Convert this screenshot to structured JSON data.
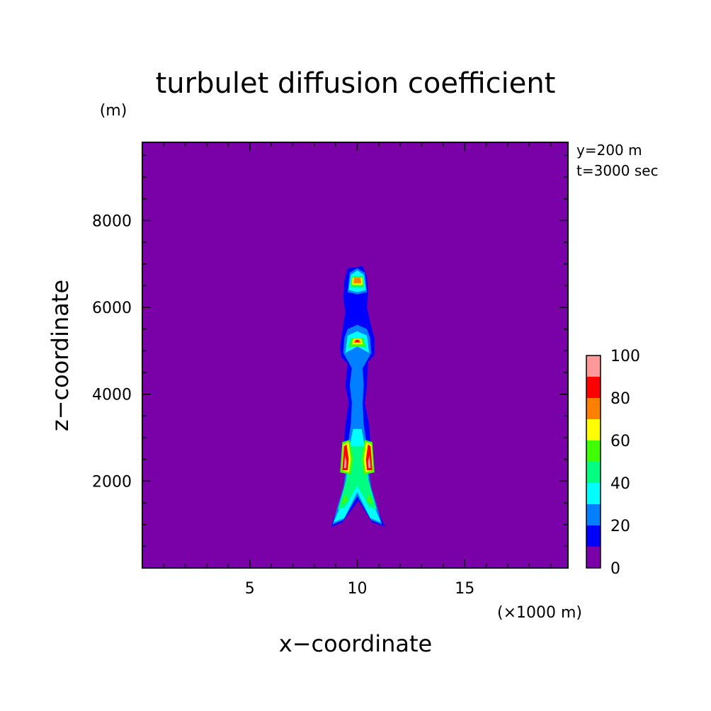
{
  "chart_data": {
    "type": "heatmap",
    "title": "turbulet diffusion coefficient",
    "xlabel": "x−coordinate",
    "ylabel": "z−coordinate",
    "x_unit": "(×1000 m)",
    "y_unit": "(m)",
    "annotations": [
      "y=200 m",
      "t=3000 sec"
    ],
    "xlim": [
      0,
      19.8
    ],
    "ylim": [
      0,
      9800
    ],
    "x_ticks": [
      5,
      10,
      15
    ],
    "x_tick_labels": [
      "5",
      "10",
      "15"
    ],
    "y_ticks": [
      2000,
      4000,
      6000,
      8000
    ],
    "y_tick_labels": [
      "2000",
      "4000",
      "6000",
      "8000"
    ],
    "grid": false,
    "colorbar": {
      "levels": [
        0,
        10,
        20,
        30,
        40,
        50,
        60,
        70,
        80,
        90,
        100
      ],
      "tick_labels": [
        "0",
        "20",
        "40",
        "60",
        "80",
        "100"
      ],
      "tick_values": [
        0,
        20,
        40,
        60,
        80,
        100
      ],
      "colors": [
        "#7a00a8",
        "#0000ff",
        "#0080ff",
        "#00ffff",
        "#00ff80",
        "#40ff00",
        "#ffff00",
        "#ff8000",
        "#ff0000",
        "#ff9999"
      ]
    },
    "contours": [
      {
        "band": 1,
        "polygon": [
          [
            8.8,
            950
          ],
          [
            8.9,
            1150
          ],
          [
            9.2,
            1500
          ],
          [
            9.5,
            1950
          ],
          [
            9.4,
            2300
          ],
          [
            9.35,
            2700
          ],
          [
            9.45,
            3300
          ],
          [
            9.6,
            3800
          ],
          [
            9.45,
            4200
          ],
          [
            9.55,
            4700
          ],
          [
            9.25,
            4850
          ],
          [
            9.2,
            5100
          ],
          [
            9.35,
            5600
          ],
          [
            9.45,
            5900
          ],
          [
            9.35,
            6200
          ],
          [
            9.4,
            6600
          ],
          [
            9.55,
            6900
          ],
          [
            10.25,
            6950
          ],
          [
            10.45,
            6700
          ],
          [
            10.5,
            6300
          ],
          [
            10.45,
            6000
          ],
          [
            10.6,
            5650
          ],
          [
            10.8,
            5300
          ],
          [
            10.8,
            4900
          ],
          [
            10.5,
            4750
          ],
          [
            10.45,
            4200
          ],
          [
            10.35,
            3800
          ],
          [
            10.55,
            3300
          ],
          [
            10.65,
            2700
          ],
          [
            10.6,
            2300
          ],
          [
            10.5,
            1950
          ],
          [
            10.8,
            1500
          ],
          [
            11.1,
            1150
          ],
          [
            11.3,
            950
          ],
          [
            10.7,
            1050
          ],
          [
            10.05,
            1550
          ],
          [
            9.3,
            1050
          ]
        ]
      },
      {
        "band": 2,
        "polygon": [
          [
            8.85,
            1000
          ],
          [
            9.1,
            1450
          ],
          [
            9.35,
            1850
          ],
          [
            9.5,
            2350
          ],
          [
            9.55,
            2800
          ],
          [
            9.7,
            3300
          ],
          [
            9.75,
            3800
          ],
          [
            9.65,
            4200
          ],
          [
            9.75,
            4600
          ],
          [
            9.35,
            4950
          ],
          [
            9.4,
            5300
          ],
          [
            9.55,
            5500
          ],
          [
            10.0,
            5600
          ],
          [
            10.45,
            5500
          ],
          [
            10.6,
            5300
          ],
          [
            10.65,
            4950
          ],
          [
            10.25,
            4600
          ],
          [
            10.3,
            4200
          ],
          [
            10.25,
            3800
          ],
          [
            10.3,
            3300
          ],
          [
            10.45,
            2800
          ],
          [
            10.5,
            2350
          ],
          [
            10.65,
            1850
          ],
          [
            10.9,
            1450
          ],
          [
            11.15,
            1000
          ],
          [
            10.65,
            1100
          ],
          [
            10.0,
            1650
          ],
          [
            9.35,
            1100
          ]
        ]
      },
      {
        "band": 2,
        "polygon": [
          [
            9.55,
            6350
          ],
          [
            9.65,
            6800
          ],
          [
            10.0,
            6900
          ],
          [
            10.35,
            6800
          ],
          [
            10.45,
            6350
          ],
          [
            10.0,
            6300
          ]
        ]
      },
      {
        "band": 3,
        "polygon": [
          [
            8.9,
            1050
          ],
          [
            9.2,
            1400
          ],
          [
            9.45,
            1900
          ],
          [
            9.55,
            2300
          ],
          [
            9.65,
            2800
          ],
          [
            9.8,
            3200
          ],
          [
            10.2,
            3200
          ],
          [
            10.35,
            2800
          ],
          [
            10.45,
            2300
          ],
          [
            10.55,
            1900
          ],
          [
            10.8,
            1400
          ],
          [
            11.1,
            1050
          ],
          [
            10.6,
            1150
          ],
          [
            10.0,
            1750
          ],
          [
            9.4,
            1150
          ]
        ]
      },
      {
        "band": 3,
        "polygon": [
          [
            9.45,
            4950
          ],
          [
            9.55,
            5350
          ],
          [
            10.0,
            5450
          ],
          [
            10.45,
            5350
          ],
          [
            10.55,
            4950
          ],
          [
            10.0,
            5100
          ]
        ]
      },
      {
        "band": 3,
        "polygon": [
          [
            9.6,
            6400
          ],
          [
            9.7,
            6750
          ],
          [
            10.0,
            6850
          ],
          [
            10.3,
            6750
          ],
          [
            10.4,
            6400
          ],
          [
            10.0,
            6350
          ]
        ]
      },
      {
        "band": 4,
        "polygon": [
          [
            9.1,
            1350
          ],
          [
            9.3,
            1700
          ],
          [
            9.55,
            2150
          ],
          [
            9.7,
            2800
          ],
          [
            10.3,
            2800
          ],
          [
            10.45,
            2150
          ],
          [
            10.7,
            1700
          ],
          [
            10.9,
            1350
          ],
          [
            10.55,
            1400
          ],
          [
            10.0,
            1900
          ],
          [
            9.45,
            1400
          ]
        ]
      },
      {
        "band": 4,
        "polygon": [
          [
            9.55,
            5050
          ],
          [
            9.7,
            5300
          ],
          [
            10.3,
            5300
          ],
          [
            10.45,
            5050
          ],
          [
            10.0,
            5150
          ]
        ]
      },
      {
        "band": 4,
        "polygon": [
          [
            9.68,
            6450
          ],
          [
            9.75,
            6720
          ],
          [
            10.25,
            6720
          ],
          [
            10.32,
            6450
          ]
        ]
      },
      {
        "band": 5,
        "polygon": [
          [
            9.25,
            1450
          ],
          [
            9.45,
            1700
          ],
          [
            9.55,
            1550
          ]
        ]
      },
      {
        "band": 5,
        "polygon": [
          [
            10.75,
            1450
          ],
          [
            10.55,
            1700
          ],
          [
            10.45,
            1550
          ]
        ]
      },
      {
        "band": 5,
        "polygon": [
          [
            9.2,
            2200
          ],
          [
            9.3,
            2900
          ],
          [
            9.65,
            2950
          ],
          [
            9.8,
            2500
          ],
          [
            9.7,
            2150
          ]
        ]
      },
      {
        "band": 5,
        "polygon": [
          [
            10.8,
            2200
          ],
          [
            10.7,
            2900
          ],
          [
            10.35,
            2950
          ],
          [
            10.2,
            2500
          ],
          [
            10.3,
            2150
          ]
        ]
      },
      {
        "band": 5,
        "polygon": [
          [
            9.65,
            5100
          ],
          [
            9.75,
            5300
          ],
          [
            10.25,
            5300
          ],
          [
            10.35,
            5100
          ]
        ]
      },
      {
        "band": 5,
        "polygon": [
          [
            9.7,
            6500
          ],
          [
            9.75,
            6700
          ],
          [
            10.25,
            6700
          ],
          [
            10.3,
            6500
          ]
        ]
      },
      {
        "band": 6,
        "polygon": [
          [
            9.28,
            2250
          ],
          [
            9.35,
            2850
          ],
          [
            9.6,
            2900
          ],
          [
            9.7,
            2500
          ],
          [
            9.62,
            2200
          ]
        ]
      },
      {
        "band": 6,
        "polygon": [
          [
            10.72,
            2250
          ],
          [
            10.65,
            2850
          ],
          [
            10.4,
            2900
          ],
          [
            10.3,
            2500
          ],
          [
            10.38,
            2200
          ]
        ]
      },
      {
        "band": 6,
        "polygon": [
          [
            9.75,
            5150
          ],
          [
            9.82,
            5280
          ],
          [
            10.18,
            5280
          ],
          [
            10.25,
            5150
          ]
        ]
      },
      {
        "band": 6,
        "polygon": [
          [
            9.75,
            6520
          ],
          [
            9.78,
            6680
          ],
          [
            10.22,
            6680
          ],
          [
            10.25,
            6520
          ]
        ]
      },
      {
        "band": 7,
        "polygon": [
          [
            9.82,
            6550
          ],
          [
            9.85,
            6680
          ],
          [
            10.15,
            6680
          ],
          [
            10.18,
            6550
          ]
        ]
      },
      {
        "band": 7,
        "polygon": [
          [
            9.82,
            5180
          ],
          [
            9.9,
            5260
          ],
          [
            10.1,
            5260
          ],
          [
            10.18,
            5180
          ]
        ]
      },
      {
        "band": 8,
        "polygon": [
          [
            9.3,
            2250
          ],
          [
            9.38,
            2800
          ],
          [
            9.5,
            2850
          ],
          [
            9.6,
            2500
          ],
          [
            9.55,
            2250
          ]
        ]
      },
      {
        "band": 8,
        "polygon": [
          [
            10.7,
            2250
          ],
          [
            10.62,
            2800
          ],
          [
            10.5,
            2850
          ],
          [
            10.4,
            2500
          ],
          [
            10.45,
            2250
          ]
        ]
      },
      {
        "band": 8,
        "polygon": [
          [
            9.9,
            5200
          ],
          [
            9.95,
            5250
          ],
          [
            10.05,
            5250
          ],
          [
            10.1,
            5200
          ]
        ]
      },
      {
        "band": 9,
        "polygon": [
          [
            9.38,
            2300
          ],
          [
            9.43,
            2600
          ],
          [
            9.5,
            2450
          ],
          [
            9.48,
            2300
          ]
        ]
      },
      {
        "band": 9,
        "polygon": [
          [
            10.62,
            2300
          ],
          [
            10.57,
            2600
          ],
          [
            10.5,
            2450
          ],
          [
            10.52,
            2300
          ]
        ]
      }
    ]
  }
}
